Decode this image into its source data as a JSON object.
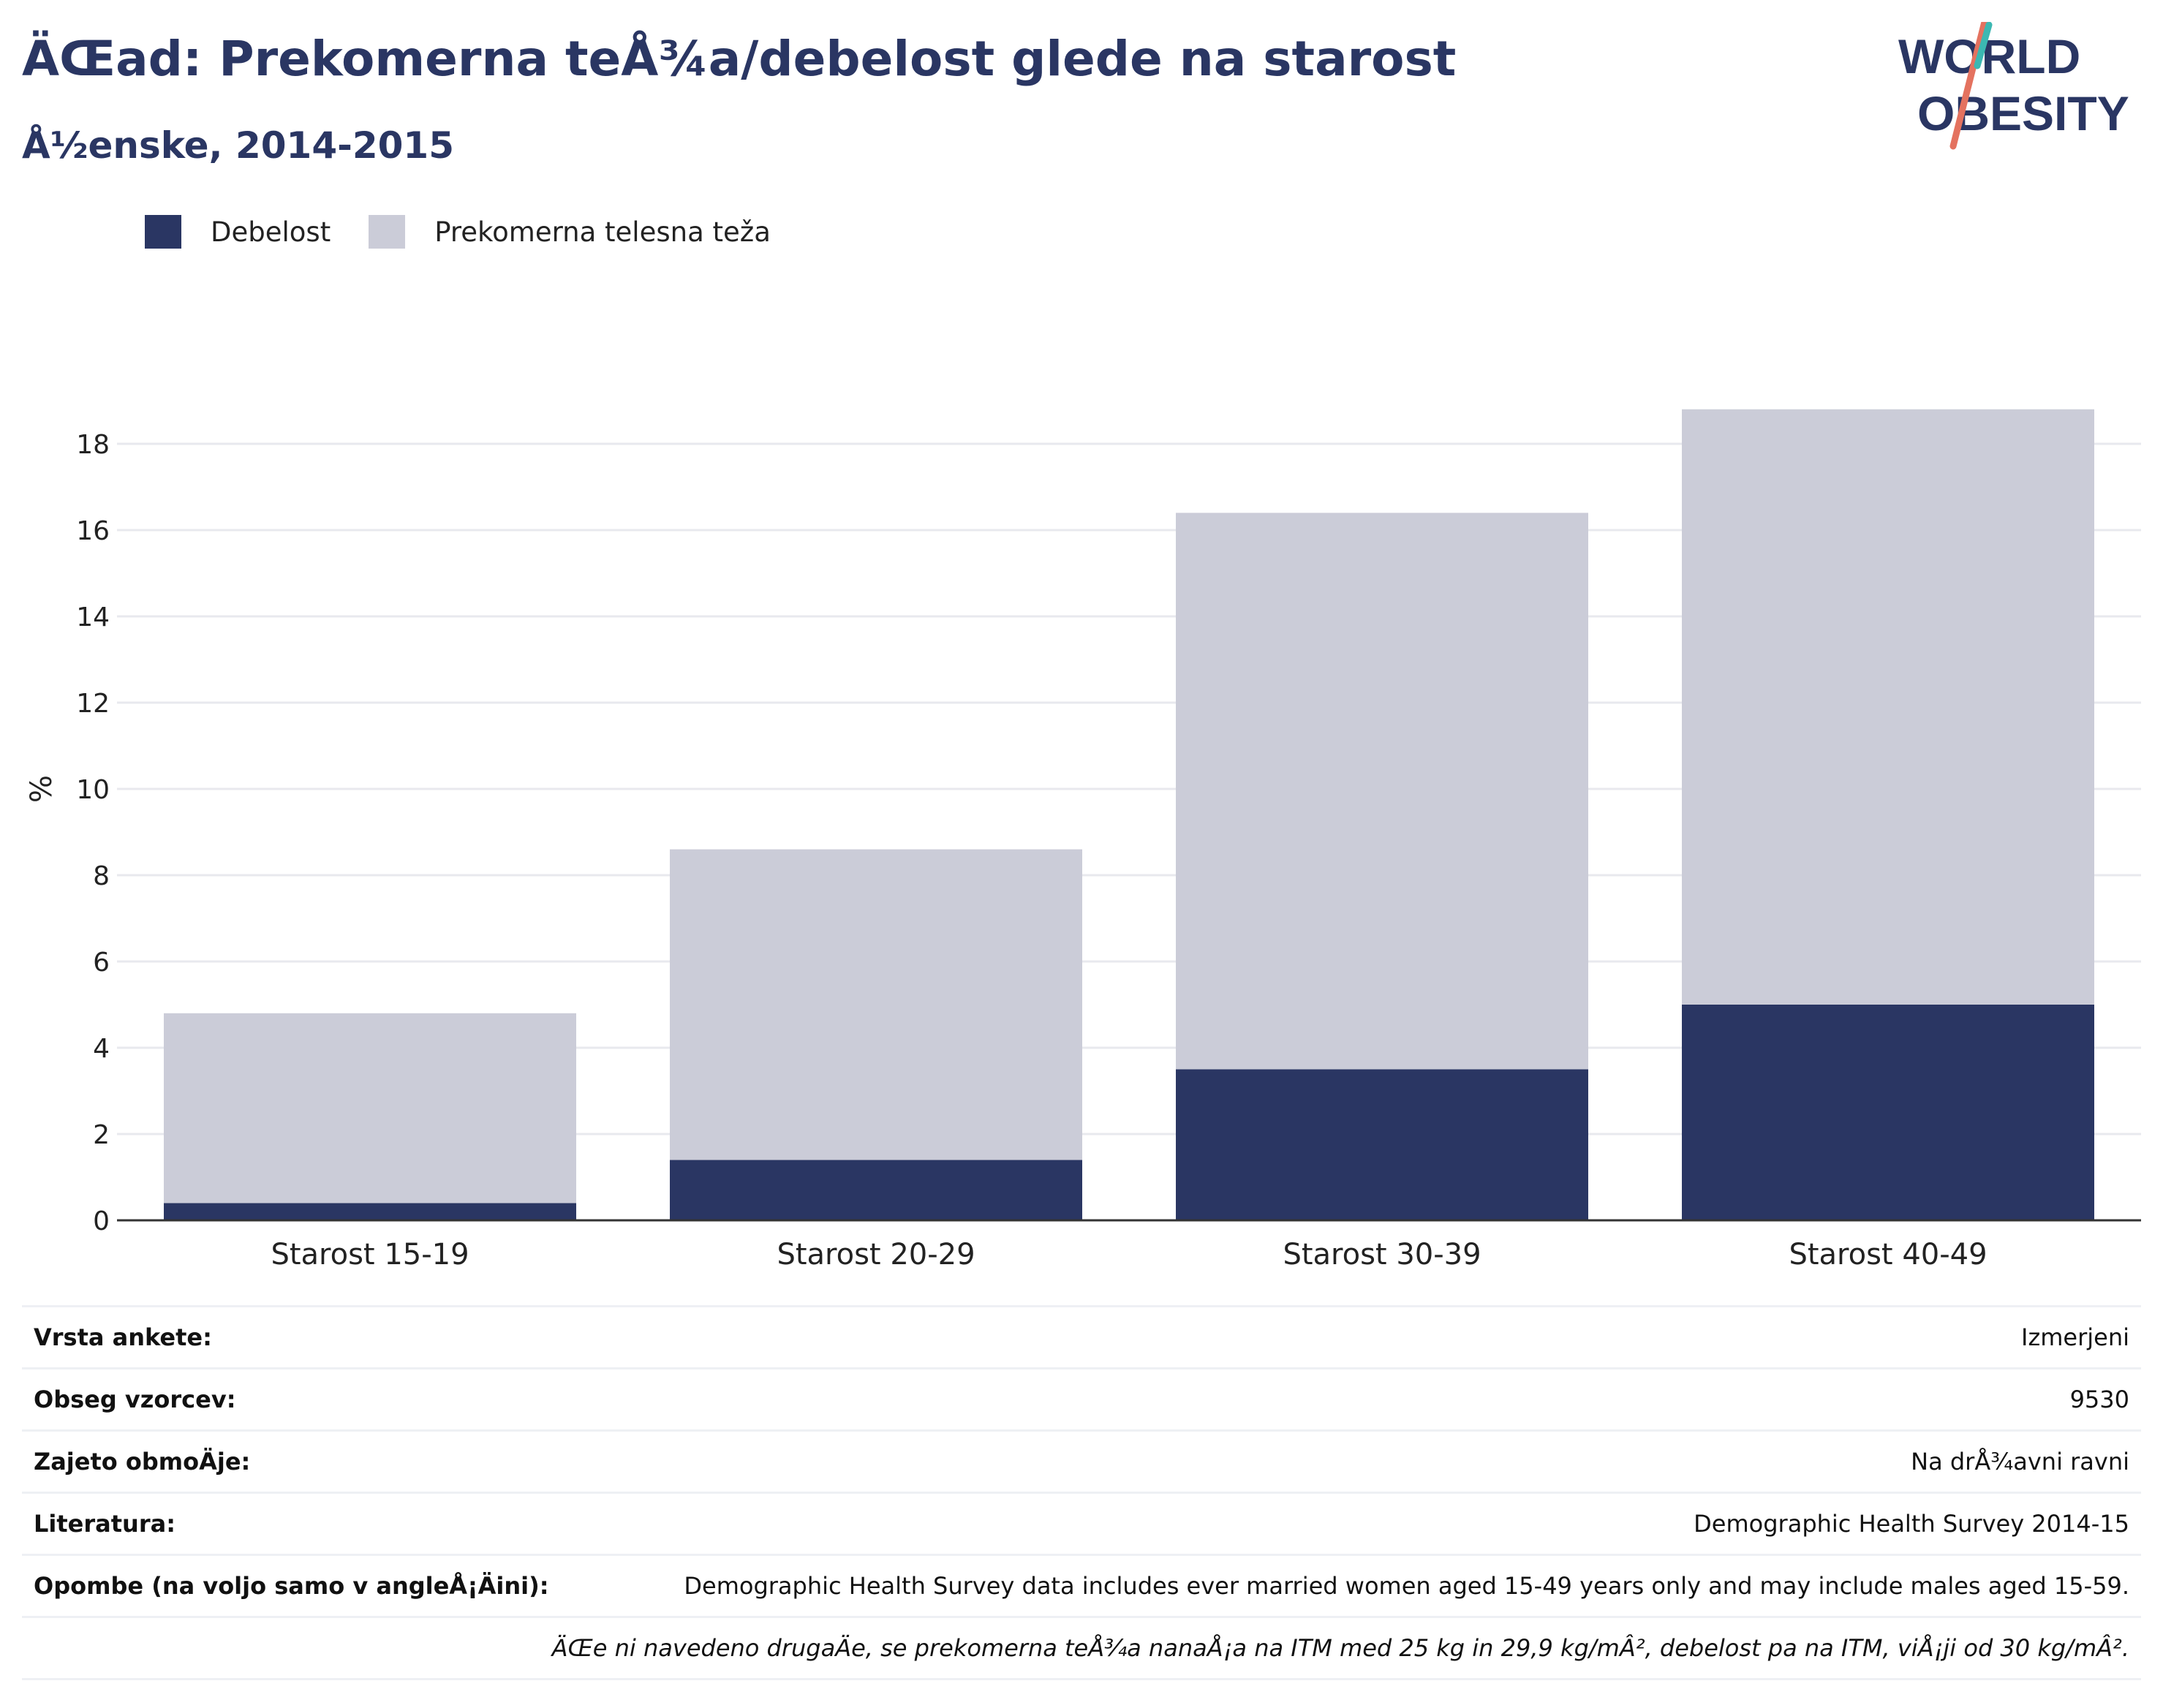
{
  "header": {
    "title": "ÄŒad: Prekomerna teÅ¾a/debelost glede na starost",
    "subtitle": "Å½enske, 2014-2015",
    "logo_text_line1": "WORLD",
    "logo_text_line2": "OBESITY"
  },
  "legend": [
    {
      "label": "Debelost",
      "color": "#2a3663"
    },
    {
      "label": "Prekomerna telesna teža",
      "color": "#cbccd8"
    }
  ],
  "chart_data": {
    "type": "bar",
    "stacked": true,
    "categories": [
      "Starost 15-19",
      "Starost 20-29",
      "Starost 30-39",
      "Starost 40-49"
    ],
    "series": [
      {
        "name": "Debelost",
        "values": [
          0.4,
          1.4,
          3.5,
          5.0
        ],
        "color": "#2a3663"
      },
      {
        "name": "Prekomerna telesna teža",
        "values": [
          4.4,
          7.2,
          12.9,
          13.8
        ],
        "color": "#cbccd8"
      }
    ],
    "ylabel": "%",
    "ylim": [
      0,
      20
    ],
    "yticks": [
      0,
      2,
      4,
      6,
      8,
      10,
      12,
      14,
      16,
      18
    ],
    "grid": true
  },
  "info_table": [
    {
      "key": "Vrsta ankete:",
      "value": "Izmerjeni"
    },
    {
      "key": "Obseg vzorcev:",
      "value": "9530"
    },
    {
      "key": "Zajeto obmoÄje:",
      "value": "Na drÅ¾avni ravni"
    },
    {
      "key": "Literatura:",
      "value": "Demographic Health Survey 2014-15"
    },
    {
      "key": "Opombe (na voljo samo v angleÅ¡Äini):",
      "value": "Demographic Health Survey data includes ever married women aged 15-49 years only and may include males aged 15-59."
    }
  ],
  "footnote": "ÄŒe ni navedeno drugaÄe, se prekomerna teÅ¾a nanaÅ¡a na ITM med 25 kg in 29,9 kg/mÂ², debelost pa na ITM, viÅ¡ji od 30 kg/mÂ²."
}
